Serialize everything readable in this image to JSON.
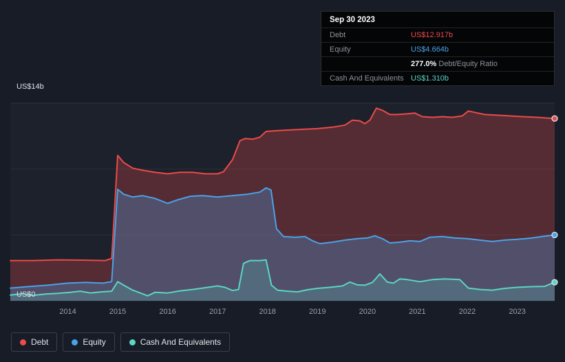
{
  "colors": {
    "background": "#171c26",
    "debt": "#eb4b4b",
    "equity": "#4aa3e8",
    "cash": "#5cd6c5",
    "debt_fill": "rgba(235,75,75,0.28)",
    "equity_fill": "rgba(74,163,232,0.30)",
    "cash_fill": "rgba(92,214,197,0.20)",
    "grid": "rgba(255,255,255,0.07)",
    "grid_strong": "#2c3340",
    "tick_text": "#9aa3ad"
  },
  "axis": {
    "y_top_label": "US$14b",
    "y_bottom_label": "US$0"
  },
  "tooltip": {
    "date": "Sep 30 2023",
    "debt_label": "Debt",
    "debt_value": "US$12.917b",
    "equity_label": "Equity",
    "equity_value": "US$4.664b",
    "ratio_bold": "277.0%",
    "ratio_rest": " Debt/Equity Ratio",
    "cash_label": "Cash And Equivalents",
    "cash_value": "US$1.310b"
  },
  "legend": {
    "position": "bottom-left",
    "items": [
      {
        "label": "Debt",
        "color": "#eb4b4b"
      },
      {
        "label": "Equity",
        "color": "#4aa3e8"
      },
      {
        "label": "Cash And Equivalents",
        "color": "#5cd6c5"
      }
    ]
  },
  "chart_data": {
    "type": "area",
    "x_unit": "year",
    "x_range": [
      2012.85,
      2023.75
    ],
    "y_range": [
      0,
      14
    ],
    "y_gridlines": [
      0,
      4.667,
      9.333,
      14
    ],
    "x_ticks": [
      2014,
      2015,
      2016,
      2017,
      2018,
      2019,
      2020,
      2021,
      2022,
      2023
    ],
    "grid": true,
    "series": [
      {
        "name": "Debt",
        "color_key": "debt",
        "last_value_label": "US$12.917b",
        "points": [
          [
            2012.85,
            2.85
          ],
          [
            2013.3,
            2.85
          ],
          [
            2013.8,
            2.9
          ],
          [
            2014.3,
            2.88
          ],
          [
            2014.75,
            2.85
          ],
          [
            2014.88,
            3.0
          ],
          [
            2015.0,
            10.3
          ],
          [
            2015.12,
            9.8
          ],
          [
            2015.3,
            9.4
          ],
          [
            2015.5,
            9.25
          ],
          [
            2015.75,
            9.1
          ],
          [
            2016.0,
            9.0
          ],
          [
            2016.25,
            9.1
          ],
          [
            2016.5,
            9.1
          ],
          [
            2016.75,
            9.0
          ],
          [
            2017.0,
            9.0
          ],
          [
            2017.12,
            9.15
          ],
          [
            2017.3,
            10.0
          ],
          [
            2017.45,
            11.35
          ],
          [
            2017.55,
            11.5
          ],
          [
            2017.7,
            11.45
          ],
          [
            2017.85,
            11.6
          ],
          [
            2017.97,
            12.0
          ],
          [
            2018.15,
            12.05
          ],
          [
            2018.4,
            12.1
          ],
          [
            2018.7,
            12.15
          ],
          [
            2019.0,
            12.2
          ],
          [
            2019.3,
            12.3
          ],
          [
            2019.55,
            12.45
          ],
          [
            2019.7,
            12.8
          ],
          [
            2019.85,
            12.75
          ],
          [
            2019.95,
            12.55
          ],
          [
            2020.05,
            12.8
          ],
          [
            2020.18,
            13.65
          ],
          [
            2020.3,
            13.5
          ],
          [
            2020.45,
            13.2
          ],
          [
            2020.6,
            13.2
          ],
          [
            2020.8,
            13.25
          ],
          [
            2020.95,
            13.3
          ],
          [
            2021.1,
            13.05
          ],
          [
            2021.3,
            13.0
          ],
          [
            2021.5,
            13.05
          ],
          [
            2021.7,
            13.0
          ],
          [
            2021.9,
            13.1
          ],
          [
            2022.02,
            13.45
          ],
          [
            2022.15,
            13.35
          ],
          [
            2022.35,
            13.2
          ],
          [
            2022.6,
            13.15
          ],
          [
            2022.85,
            13.1
          ],
          [
            2023.1,
            13.05
          ],
          [
            2023.4,
            13.0
          ],
          [
            2023.75,
            12.917
          ]
        ]
      },
      {
        "name": "Equity",
        "color_key": "equity",
        "last_value_label": "US$4.664b",
        "points": [
          [
            2012.85,
            0.9
          ],
          [
            2013.2,
            1.0
          ],
          [
            2013.6,
            1.1
          ],
          [
            2014.0,
            1.25
          ],
          [
            2014.35,
            1.3
          ],
          [
            2014.7,
            1.25
          ],
          [
            2014.88,
            1.35
          ],
          [
            2015.0,
            7.9
          ],
          [
            2015.12,
            7.55
          ],
          [
            2015.3,
            7.35
          ],
          [
            2015.5,
            7.45
          ],
          [
            2015.75,
            7.25
          ],
          [
            2016.0,
            6.9
          ],
          [
            2016.2,
            7.15
          ],
          [
            2016.45,
            7.4
          ],
          [
            2016.7,
            7.45
          ],
          [
            2017.0,
            7.35
          ],
          [
            2017.3,
            7.45
          ],
          [
            2017.6,
            7.55
          ],
          [
            2017.85,
            7.7
          ],
          [
            2017.97,
            8.0
          ],
          [
            2018.07,
            7.85
          ],
          [
            2018.18,
            5.1
          ],
          [
            2018.32,
            4.55
          ],
          [
            2018.55,
            4.5
          ],
          [
            2018.75,
            4.55
          ],
          [
            2018.9,
            4.25
          ],
          [
            2019.05,
            4.05
          ],
          [
            2019.3,
            4.15
          ],
          [
            2019.55,
            4.3
          ],
          [
            2019.8,
            4.4
          ],
          [
            2020.0,
            4.45
          ],
          [
            2020.15,
            4.6
          ],
          [
            2020.3,
            4.4
          ],
          [
            2020.45,
            4.1
          ],
          [
            2020.65,
            4.15
          ],
          [
            2020.85,
            4.25
          ],
          [
            2021.05,
            4.2
          ],
          [
            2021.25,
            4.5
          ],
          [
            2021.5,
            4.55
          ],
          [
            2021.75,
            4.45
          ],
          [
            2022.0,
            4.4
          ],
          [
            2022.25,
            4.3
          ],
          [
            2022.5,
            4.2
          ],
          [
            2022.75,
            4.3
          ],
          [
            2023.0,
            4.35
          ],
          [
            2023.3,
            4.45
          ],
          [
            2023.55,
            4.58
          ],
          [
            2023.75,
            4.664
          ]
        ]
      },
      {
        "name": "Cash And Equivalents",
        "color_key": "cash",
        "last_value_label": "US$1.310b",
        "points": [
          [
            2012.85,
            0.4
          ],
          [
            2013.1,
            0.5
          ],
          [
            2013.3,
            0.38
          ],
          [
            2013.55,
            0.48
          ],
          [
            2013.8,
            0.52
          ],
          [
            2014.05,
            0.6
          ],
          [
            2014.25,
            0.68
          ],
          [
            2014.45,
            0.55
          ],
          [
            2014.65,
            0.62
          ],
          [
            2014.88,
            0.68
          ],
          [
            2015.0,
            1.35
          ],
          [
            2015.12,
            1.1
          ],
          [
            2015.3,
            0.75
          ],
          [
            2015.45,
            0.55
          ],
          [
            2015.6,
            0.35
          ],
          [
            2015.75,
            0.6
          ],
          [
            2016.0,
            0.55
          ],
          [
            2016.25,
            0.7
          ],
          [
            2016.5,
            0.8
          ],
          [
            2016.75,
            0.92
          ],
          [
            2017.0,
            1.05
          ],
          [
            2017.15,
            0.95
          ],
          [
            2017.3,
            0.72
          ],
          [
            2017.42,
            0.8
          ],
          [
            2017.52,
            2.65
          ],
          [
            2017.65,
            2.85
          ],
          [
            2017.85,
            2.85
          ],
          [
            2017.97,
            2.9
          ],
          [
            2018.08,
            1.1
          ],
          [
            2018.2,
            0.75
          ],
          [
            2018.4,
            0.68
          ],
          [
            2018.6,
            0.63
          ],
          [
            2018.8,
            0.78
          ],
          [
            2019.0,
            0.88
          ],
          [
            2019.25,
            0.95
          ],
          [
            2019.5,
            1.05
          ],
          [
            2019.65,
            1.32
          ],
          [
            2019.8,
            1.12
          ],
          [
            2019.95,
            1.1
          ],
          [
            2020.1,
            1.3
          ],
          [
            2020.25,
            1.9
          ],
          [
            2020.4,
            1.32
          ],
          [
            2020.52,
            1.25
          ],
          [
            2020.65,
            1.55
          ],
          [
            2020.8,
            1.5
          ],
          [
            2021.05,
            1.35
          ],
          [
            2021.3,
            1.5
          ],
          [
            2021.55,
            1.55
          ],
          [
            2021.85,
            1.5
          ],
          [
            2022.02,
            0.9
          ],
          [
            2022.25,
            0.8
          ],
          [
            2022.5,
            0.75
          ],
          [
            2022.75,
            0.88
          ],
          [
            2023.0,
            0.95
          ],
          [
            2023.3,
            1.0
          ],
          [
            2023.55,
            1.02
          ],
          [
            2023.75,
            1.31
          ]
        ]
      }
    ]
  }
}
